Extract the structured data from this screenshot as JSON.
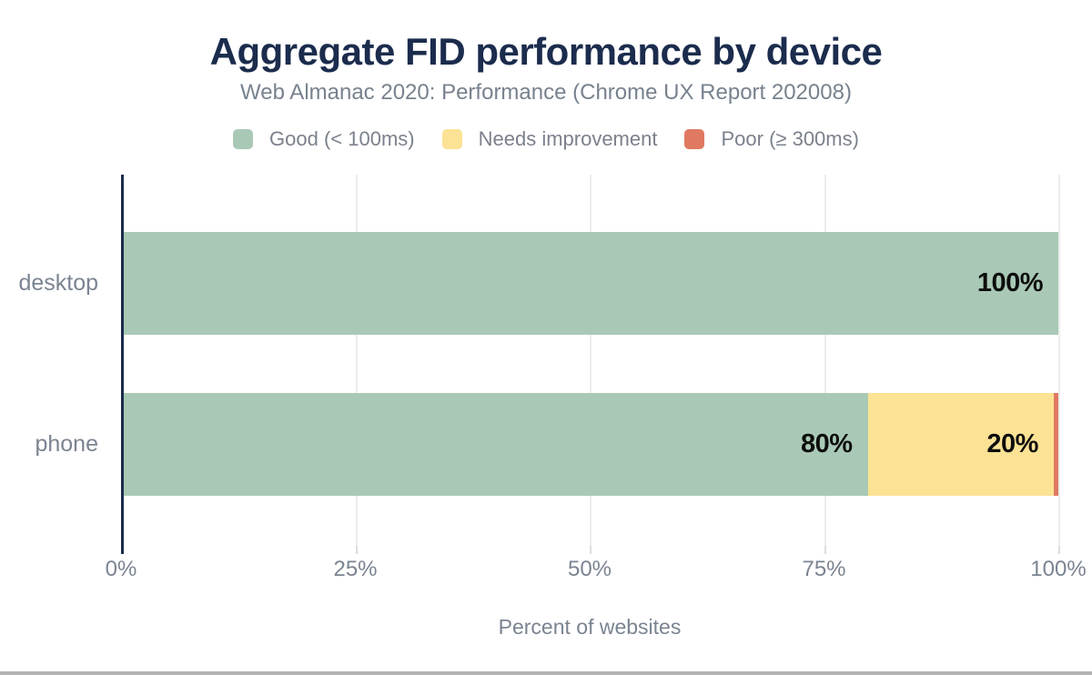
{
  "chart_data": {
    "type": "bar",
    "orientation": "horizontal",
    "stacked": true,
    "title": "Aggregate FID performance by device",
    "subtitle": "Web Almanac 2020: Performance (Chrome UX Report 202008)",
    "categories": [
      "desktop",
      "phone"
    ],
    "series": [
      {
        "name": "Good (< 100ms)",
        "color": "#a9c9b6",
        "values": [
          100,
          80
        ],
        "labels": [
          "100%",
          "80%"
        ]
      },
      {
        "name": "Needs improvement",
        "color": "#fce294",
        "values": [
          0,
          20
        ],
        "labels": [
          "",
          "20%"
        ]
      },
      {
        "name": "Poor (≥ 300ms)",
        "color": "#e07962",
        "values": [
          0,
          0.5
        ],
        "labels": [
          "",
          ""
        ]
      }
    ],
    "xlabel": "Percent of websites",
    "x_ticks": [
      {
        "label": "0%",
        "value": 0
      },
      {
        "label": "25%",
        "value": 25
      },
      {
        "label": "50%",
        "value": 50
      },
      {
        "label": "75%",
        "value": 75
      },
      {
        "label": "100%",
        "value": 100
      }
    ],
    "xlim": [
      0,
      100
    ],
    "grid": "vertical",
    "legend_position": "top"
  },
  "colors": {
    "title": "#1b2c4d",
    "subtitle": "#78828e",
    "legend_text": "#7b818c",
    "axis_line": "#1b2c4d",
    "gridline": "#ededed",
    "tick": "#dcdcdc",
    "axis_text": "#7b8491",
    "data_label": "#0d0d0d",
    "bottom_border": "#b4b4b4"
  }
}
